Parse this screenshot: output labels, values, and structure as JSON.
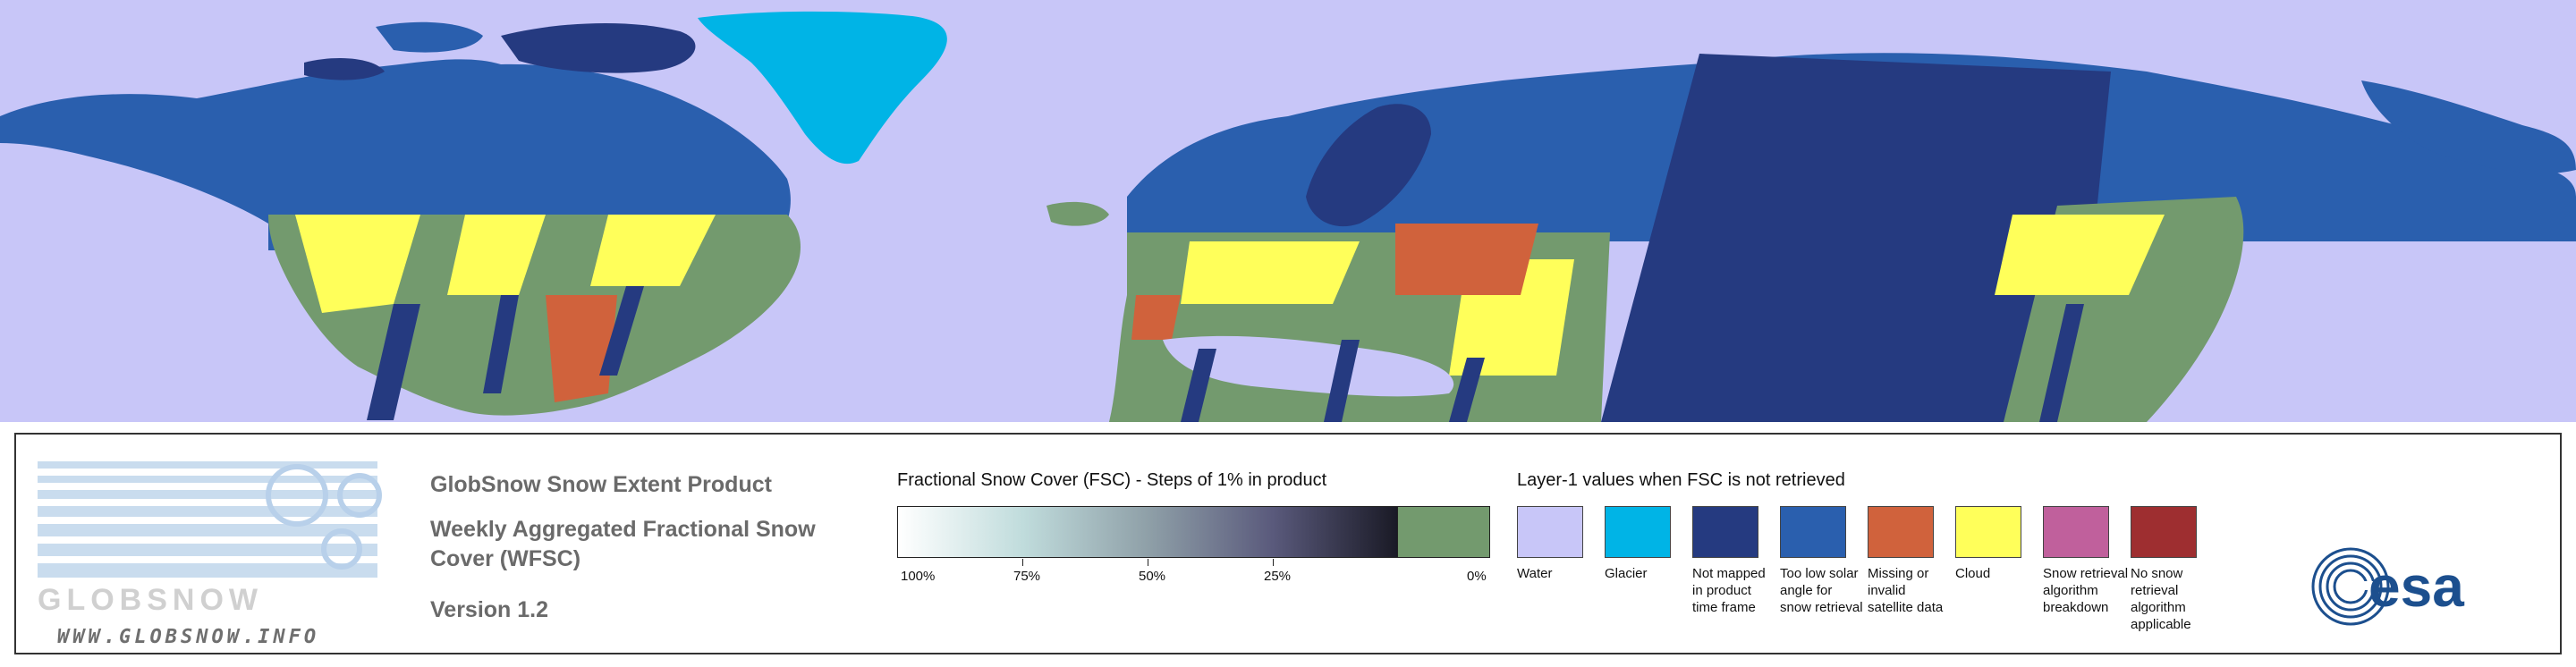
{
  "map": {
    "water_color": "#c8c6f8",
    "land_classes_visible": [
      "not-mapped",
      "too-low-solar-angle",
      "glacier",
      "cloud",
      "snow-free",
      "missing-data",
      "fractional-snow"
    ]
  },
  "logo": {
    "wordmark": "GLOBSNOW",
    "url": "WWW.GLOBSNOW.INFO"
  },
  "titles": {
    "product": "GlobSnow Snow Extent Product",
    "subtitle": "Weekly Aggregated Fractional Snow Cover (WFSC)",
    "version": "Version 1.2"
  },
  "fsc_scale": {
    "title": "Fractional Snow Cover (FSC) - Steps of 1% in product",
    "ticks": [
      "100%",
      "75%",
      "50%",
      "25%",
      "0%"
    ],
    "gradient_colors": [
      "#ffffff",
      "#c0dcdc",
      "#8fa0a8",
      "#5a5a7c",
      "#1a1a26"
    ],
    "zero_color": "#739a6e"
  },
  "layer1": {
    "title": "Layer-1 values when FSC is not retrieved",
    "items": [
      {
        "label": "Water",
        "color": "#c8c6f8"
      },
      {
        "label": "Glacier",
        "color": "#00b4e6"
      },
      {
        "label": "Not mapped in product time frame",
        "color": "#253a80"
      },
      {
        "label": "Too low solar angle for snow retrieval",
        "color": "#2a5fae"
      },
      {
        "label": "Missing or invalid satellite data",
        "color": "#d0623c"
      },
      {
        "label": "Cloud",
        "color": "#ffff5a"
      },
      {
        "label": "Snow retrieval algorithm breakdown",
        "color": "#c0609c"
      },
      {
        "label": "No snow retrieval algorithm applicable",
        "color": "#9e2e30"
      }
    ]
  },
  "partner_logo": {
    "text": "esa"
  }
}
